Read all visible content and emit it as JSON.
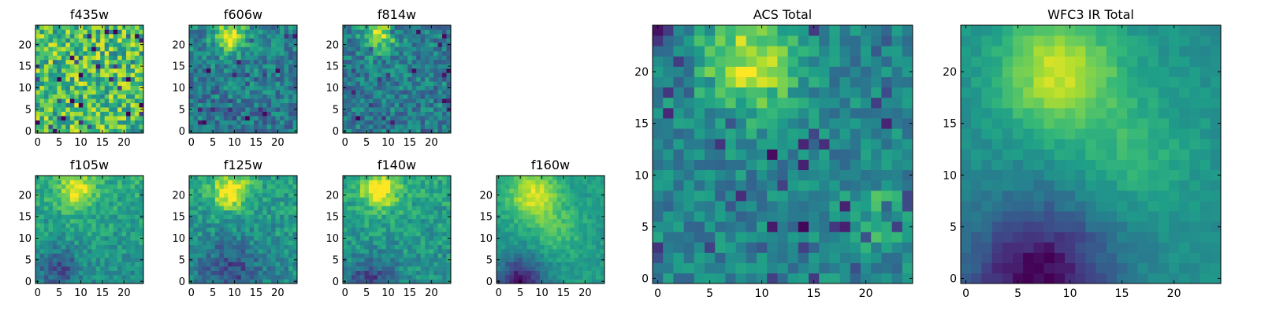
{
  "chart_data": [
    {
      "type": "heatmap",
      "title": "f435w",
      "xticks": [
        "0",
        "5",
        "10",
        "15",
        "20"
      ],
      "yticks": [
        "0",
        "5",
        "10",
        "15",
        "20"
      ],
      "grid_size": [
        25,
        25
      ],
      "xlim": [
        0,
        24
      ],
      "ylim": [
        0,
        24
      ],
      "colormap": "viridis",
      "grid": false
    },
    {
      "type": "heatmap",
      "title": "f606w",
      "xticks": [
        "0",
        "5",
        "10",
        "15",
        "20"
      ],
      "yticks": [
        "0",
        "5",
        "10",
        "15",
        "20"
      ],
      "grid_size": [
        25,
        25
      ],
      "xlim": [
        0,
        24
      ],
      "ylim": [
        0,
        24
      ],
      "colormap": "viridis",
      "grid": false
    },
    {
      "type": "heatmap",
      "title": "f814w",
      "xticks": [
        "0",
        "5",
        "10",
        "15",
        "20"
      ],
      "yticks": [
        "0",
        "5",
        "10",
        "15",
        "20"
      ],
      "grid_size": [
        25,
        25
      ],
      "xlim": [
        0,
        24
      ],
      "ylim": [
        0,
        24
      ],
      "colormap": "viridis",
      "grid": false
    },
    {
      "type": "heatmap",
      "title": "f105w",
      "xticks": [
        "0",
        "5",
        "10",
        "15",
        "20"
      ],
      "yticks": [
        "0",
        "5",
        "10",
        "15",
        "20"
      ],
      "grid_size": [
        25,
        25
      ],
      "xlim": [
        0,
        24
      ],
      "ylim": [
        0,
        24
      ],
      "colormap": "viridis",
      "grid": false
    },
    {
      "type": "heatmap",
      "title": "f125w",
      "xticks": [
        "0",
        "5",
        "10",
        "15",
        "20"
      ],
      "yticks": [
        "0",
        "5",
        "10",
        "15",
        "20"
      ],
      "grid_size": [
        25,
        25
      ],
      "xlim": [
        0,
        24
      ],
      "ylim": [
        0,
        24
      ],
      "colormap": "viridis",
      "grid": false
    },
    {
      "type": "heatmap",
      "title": "f140w",
      "xticks": [
        "0",
        "5",
        "10",
        "15",
        "20"
      ],
      "yticks": [
        "0",
        "5",
        "10",
        "15",
        "20"
      ],
      "grid_size": [
        25,
        25
      ],
      "xlim": [
        0,
        24
      ],
      "ylim": [
        0,
        24
      ],
      "colormap": "viridis",
      "grid": false
    },
    {
      "type": "heatmap",
      "title": "f160w",
      "xticks": [
        "0",
        "5",
        "10",
        "15",
        "20"
      ],
      "yticks": [
        "0",
        "5",
        "10",
        "15",
        "20"
      ],
      "grid_size": [
        25,
        25
      ],
      "xlim": [
        0,
        24
      ],
      "ylim": [
        0,
        24
      ],
      "colormap": "viridis",
      "grid": false
    },
    {
      "type": "heatmap",
      "title": "ACS Total",
      "xticks": [
        "0",
        "5",
        "10",
        "15",
        "20"
      ],
      "yticks": [
        "0",
        "5",
        "10",
        "15",
        "20"
      ],
      "grid_size": [
        25,
        25
      ],
      "xlim": [
        0,
        24
      ],
      "ylim": [
        0,
        24
      ],
      "colormap": "viridis",
      "grid": false
    },
    {
      "type": "heatmap",
      "title": "WFC3 IR Total",
      "xticks": [
        "0",
        "5",
        "10",
        "15",
        "20"
      ],
      "yticks": [
        "0",
        "5",
        "10",
        "15",
        "20"
      ],
      "grid_size": [
        25,
        25
      ],
      "xlim": [
        0,
        24
      ],
      "ylim": [
        0,
        24
      ],
      "colormap": "viridis",
      "grid": false
    }
  ]
}
